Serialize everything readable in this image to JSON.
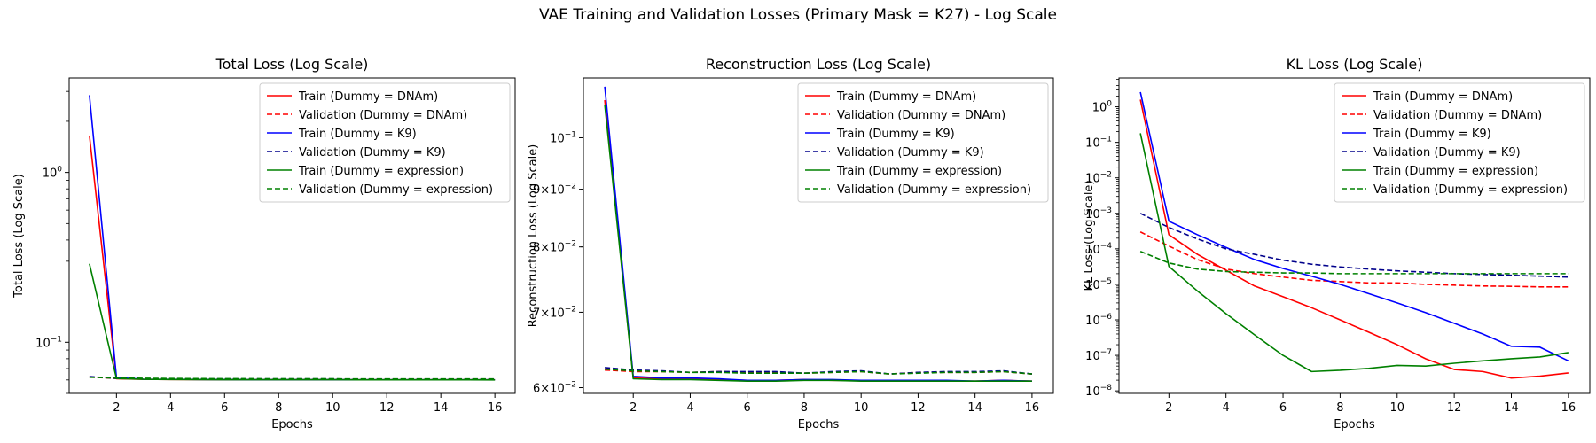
{
  "figure": {
    "title": "VAE Training and Validation Losses (Primary Mask = K27) - Log Scale"
  },
  "chart_data": [
    {
      "type": "line",
      "title": "Total Loss (Log Scale)",
      "xlabel": "Epochs",
      "ylabel": "Total Loss (Log Scale)",
      "yscale": "log",
      "xlim": [
        0.25,
        16.75
      ],
      "ylim": [
        0.05,
        3.6
      ],
      "x_ticks": [
        2,
        4,
        6,
        8,
        10,
        12,
        14,
        16
      ],
      "y_ticks": [
        {
          "value": 0.1,
          "base": "10",
          "exp": "−1"
        },
        {
          "value": 1,
          "base": "10",
          "exp": "0"
        }
      ],
      "legend": "top-right",
      "x": [
        1,
        2,
        3,
        4,
        5,
        6,
        7,
        8,
        9,
        10,
        11,
        12,
        13,
        14,
        15,
        16
      ],
      "series": [
        {
          "name": "Train (Dummy = DNAm)",
          "color": "#ff0000",
          "dash": false,
          "values": [
            1.65,
            0.061,
            0.0605,
            0.0604,
            0.0603,
            0.0602,
            0.0602,
            0.0602,
            0.0602,
            0.0602,
            0.0601,
            0.0601,
            0.0601,
            0.0601,
            0.0601,
            0.0601
          ]
        },
        {
          "name": "Validation (Dummy = DNAm)",
          "color": "#ff0000",
          "dash": true,
          "values": [
            0.0625,
            0.0612,
            0.061,
            0.0608,
            0.0608,
            0.0607,
            0.0607,
            0.0606,
            0.0607,
            0.0607,
            0.0606,
            0.0606,
            0.0606,
            0.0606,
            0.0607,
            0.0606
          ]
        },
        {
          "name": "Train (Dummy = K9)",
          "color": "#0000ff",
          "dash": false,
          "values": [
            2.85,
            0.062,
            0.0606,
            0.0605,
            0.0604,
            0.0603,
            0.0602,
            0.0602,
            0.0602,
            0.0602,
            0.0601,
            0.0601,
            0.0601,
            0.0601,
            0.0601,
            0.0601
          ]
        },
        {
          "name": "Validation (Dummy = K9)",
          "color": "#00008b",
          "dash": true,
          "values": [
            0.0628,
            0.0613,
            0.0611,
            0.061,
            0.0609,
            0.0608,
            0.0608,
            0.0608,
            0.0608,
            0.0608,
            0.0607,
            0.0607,
            0.0607,
            0.0607,
            0.0607,
            0.0607
          ]
        },
        {
          "name": "Train (Dummy = expression)",
          "color": "#008000",
          "dash": false,
          "values": [
            0.29,
            0.0612,
            0.0605,
            0.0604,
            0.0603,
            0.0602,
            0.0602,
            0.0602,
            0.0602,
            0.0602,
            0.0601,
            0.0601,
            0.0601,
            0.0601,
            0.0601,
            0.06
          ]
        },
        {
          "name": "Validation (Dummy = expression)",
          "color": "#008000",
          "dash": true,
          "values": [
            0.0622,
            0.0616,
            0.0614,
            0.0612,
            0.0611,
            0.061,
            0.061,
            0.0609,
            0.0609,
            0.0609,
            0.0608,
            0.0608,
            0.0608,
            0.0608,
            0.0608,
            0.0608
          ]
        }
      ]
    },
    {
      "type": "line",
      "title": "Reconstruction Loss (Log Scale)",
      "xlabel": "Epochs",
      "ylabel": "Reconstruction Loss (Log Scale)",
      "yscale": "log",
      "xlim": [
        0.25,
        16.75
      ],
      "ylim": [
        0.0593,
        0.113
      ],
      "x_ticks": [
        2,
        4,
        6,
        8,
        10,
        12,
        14,
        16
      ],
      "y_ticks": [
        {
          "value": 0.06,
          "mant": "6",
          "base": "10",
          "exp": "−2"
        },
        {
          "value": 0.07,
          "mant": "7",
          "base": "10",
          "exp": "−2"
        },
        {
          "value": 0.08,
          "mant": "8",
          "base": "10",
          "exp": "−2"
        },
        {
          "value": 0.09,
          "mant": "9",
          "base": "10",
          "exp": "−2"
        },
        {
          "value": 0.1,
          "mant": "",
          "base": "10",
          "exp": "−1"
        }
      ],
      "legend": "top-right",
      "x": [
        1,
        2,
        3,
        4,
        5,
        6,
        7,
        8,
        9,
        10,
        11,
        12,
        13,
        14,
        15,
        16
      ],
      "series": [
        {
          "name": "Train (Dummy = DNAm)",
          "color": "#ff0000",
          "dash": false,
          "values": [
            0.108,
            0.0612,
            0.0611,
            0.0611,
            0.061,
            0.0609,
            0.0609,
            0.061,
            0.0609,
            0.0609,
            0.0609,
            0.0608,
            0.0608,
            0.0608,
            0.0609,
            0.0608
          ]
        },
        {
          "name": "Validation (Dummy = DNAm)",
          "color": "#ff0000",
          "dash": true,
          "values": [
            0.0622,
            0.062,
            0.062,
            0.0619,
            0.062,
            0.0619,
            0.0619,
            0.0618,
            0.0619,
            0.062,
            0.0617,
            0.0619,
            0.0619,
            0.0619,
            0.062,
            0.0617
          ]
        },
        {
          "name": "Train (Dummy = K9)",
          "color": "#0000ff",
          "dash": false,
          "values": [
            0.111,
            0.0614,
            0.0612,
            0.0612,
            0.0611,
            0.0609,
            0.0609,
            0.061,
            0.061,
            0.0609,
            0.0609,
            0.0609,
            0.0609,
            0.0608,
            0.0609,
            0.0608
          ]
        },
        {
          "name": "Validation (Dummy = K9)",
          "color": "#00008b",
          "dash": true,
          "values": [
            0.0625,
            0.0622,
            0.0621,
            0.0619,
            0.062,
            0.062,
            0.062,
            0.0618,
            0.062,
            0.0621,
            0.0617,
            0.0619,
            0.062,
            0.062,
            0.0621,
            0.0617
          ]
        },
        {
          "name": "Train (Dummy = expression)",
          "color": "#008000",
          "dash": false,
          "values": [
            0.107,
            0.0611,
            0.061,
            0.061,
            0.0609,
            0.0608,
            0.0608,
            0.0609,
            0.0609,
            0.0608,
            0.0608,
            0.0608,
            0.0608,
            0.0608,
            0.0608,
            0.0608
          ]
        },
        {
          "name": "Validation (Dummy = expression)",
          "color": "#008000",
          "dash": true,
          "values": [
            0.0623,
            0.0621,
            0.062,
            0.0619,
            0.0619,
            0.0618,
            0.0618,
            0.0618,
            0.0619,
            0.062,
            0.0617,
            0.0618,
            0.0619,
            0.0619,
            0.062,
            0.0617
          ]
        }
      ]
    },
    {
      "type": "line",
      "title": "KL Loss (Log Scale)",
      "xlabel": "Epochs",
      "ylabel": "KL Loss (Log Scale)",
      "yscale": "log",
      "xlim": [
        0.25,
        16.75
      ],
      "ylim": [
        8.5e-09,
        6.5
      ],
      "x_ticks": [
        2,
        4,
        6,
        8,
        10,
        12,
        14,
        16
      ],
      "y_ticks": [
        {
          "value": 1e-08,
          "base": "10",
          "exp": "−8"
        },
        {
          "value": 1e-07,
          "base": "10",
          "exp": "−7"
        },
        {
          "value": 1e-06,
          "base": "10",
          "exp": "−6"
        },
        {
          "value": 1e-05,
          "base": "10",
          "exp": "−5"
        },
        {
          "value": 0.0001,
          "base": "10",
          "exp": "−4"
        },
        {
          "value": 0.001,
          "base": "10",
          "exp": "−3"
        },
        {
          "value": 0.01,
          "base": "10",
          "exp": "−2"
        },
        {
          "value": 0.1,
          "base": "10",
          "exp": "−1"
        },
        {
          "value": 1,
          "base": "10",
          "exp": "0"
        }
      ],
      "legend": "top-right",
      "x": [
        1,
        2,
        3,
        4,
        5,
        6,
        7,
        8,
        9,
        10,
        11,
        12,
        13,
        14,
        15,
        16
      ],
      "series": [
        {
          "name": "Train (Dummy = DNAm)",
          "color": "#ff0000",
          "dash": false,
          "values": [
            1.6,
            0.00025,
            7e-05,
            2.5e-05,
            9e-06,
            4.5e-06,
            2.2e-06,
            1e-06,
            4.5e-07,
            2e-07,
            8e-08,
            4e-08,
            3.5e-08,
            2.3e-08,
            2.6e-08,
            3.2e-08
          ]
        },
        {
          "name": "Validation (Dummy = DNAm)",
          "color": "#ff0000",
          "dash": true,
          "values": [
            0.0003,
            0.00012,
            5e-05,
            2.7e-05,
            2e-05,
            1.6e-05,
            1.3e-05,
            1.2e-05,
            1.1e-05,
            1.1e-05,
            1e-05,
            9.5e-06,
            9e-06,
            8.8e-06,
            8.5e-06,
            8.5e-06
          ]
        },
        {
          "name": "Train (Dummy = K9)",
          "color": "#0000ff",
          "dash": false,
          "values": [
            2.6,
            0.0006,
            0.00025,
            0.00011,
            5e-05,
            2.8e-05,
            1.7e-05,
            1e-05,
            5.5e-06,
            3e-06,
            1.6e-06,
            8e-07,
            4e-07,
            1.8e-07,
            1.7e-07,
            7e-08
          ]
        },
        {
          "name": "Validation (Dummy = K9)",
          "color": "#00008b",
          "dash": true,
          "values": [
            0.001,
            0.0004,
            0.00019,
            0.0001,
            7e-05,
            4.8e-05,
            3.7e-05,
            3.1e-05,
            2.7e-05,
            2.4e-05,
            2.2e-05,
            2e-05,
            1.9e-05,
            1.8e-05,
            1.7e-05,
            1.6e-05
          ]
        },
        {
          "name": "Train (Dummy = expression)",
          "color": "#008000",
          "dash": false,
          "values": [
            0.18,
            3.2e-05,
            6.5e-06,
            1.5e-06,
            3.8e-07,
            1e-07,
            3.5e-08,
            3.8e-08,
            4.3e-08,
            5.2e-08,
            5e-08,
            6e-08,
            7e-08,
            8e-08,
            9e-08,
            1.2e-07
          ]
        },
        {
          "name": "Validation (Dummy = expression)",
          "color": "#008000",
          "dash": true,
          "values": [
            8.5e-05,
            4e-05,
            2.7e-05,
            2.3e-05,
            2.2e-05,
            2.1e-05,
            2.1e-05,
            2e-05,
            2e-05,
            2e-05,
            2e-05,
            2e-05,
            2e-05,
            2e-05,
            2e-05,
            2e-05
          ]
        }
      ]
    }
  ]
}
